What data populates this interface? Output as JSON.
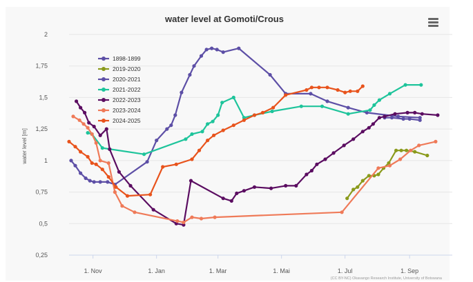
{
  "chart_data": {
    "type": "line",
    "title": "water level at Gomoti/Crous",
    "xlabel": "",
    "ylabel": "water level [m]",
    "ylim": [
      0.25,
      2.0
    ],
    "y_ticks": [
      "0,25",
      "0,5",
      "0,75",
      "1",
      "1,25",
      "1,5",
      "1,75",
      "2"
    ],
    "y_tick_values": [
      0.25,
      0.5,
      0.75,
      1.0,
      1.25,
      1.5,
      1.75,
      2.0
    ],
    "x_ticks": [
      "1. Nov",
      "1. Jan",
      "1. Mar",
      "1. Mai",
      "1. Jul",
      "1. Sep"
    ],
    "x_tick_days": [
      31,
      92,
      151,
      212,
      273,
      335
    ],
    "x_unit": "days after 1 Oct",
    "x_range": [
      8,
      376
    ],
    "grid": "horizontal",
    "legend_position": "top-left",
    "credit": "(CC BY-NC) Okavango Research Institute, University of Botswana",
    "series": [
      {
        "name": "1898-1899",
        "color": "#5d4fa6",
        "x": [
          10,
          14,
          19,
          24,
          28,
          32,
          38,
          45,
          52,
          83,
          92,
          102,
          106,
          110,
          116,
          124,
          128,
          135,
          140,
          145,
          150,
          156,
          171,
          201,
          216,
          240,
          256,
          276,
          294,
          324,
          345
        ],
        "y": [
          1.0,
          0.96,
          0.9,
          0.86,
          0.84,
          0.83,
          0.83,
          0.83,
          0.81,
          0.99,
          1.16,
          1.25,
          1.28,
          1.36,
          1.54,
          1.68,
          1.75,
          1.83,
          1.88,
          1.89,
          1.88,
          1.86,
          1.89,
          1.68,
          1.53,
          1.53,
          1.47,
          1.42,
          1.38,
          1.35,
          1.34
        ]
      },
      {
        "name": "2019-2020",
        "color": "#8a9a1b",
        "x": [
          275,
          281,
          285,
          290,
          296,
          301,
          305,
          310,
          315,
          322,
          327,
          332,
          340,
          352
        ],
        "y": [
          0.7,
          0.77,
          0.79,
          0.84,
          0.88,
          0.88,
          0.89,
          0.94,
          0.98,
          1.08,
          1.08,
          1.08,
          1.07,
          1.04
        ]
      },
      {
        "name": "2020-2021",
        "color": "#5d4fa6",
        "x": [
          311,
          318,
          329,
          335,
          345
        ],
        "y": [
          1.34,
          1.34,
          1.33,
          1.33,
          1.32
        ]
      },
      {
        "name": "2021-2022",
        "color": "#1ec49b",
        "x": [
          26,
          30,
          40,
          80,
          120,
          126,
          136,
          141,
          146,
          151,
          155,
          166,
          176,
          186,
          203,
          231,
          251,
          276,
          297,
          301,
          306,
          316,
          331,
          346
        ],
        "y": [
          1.22,
          1.21,
          1.1,
          1.05,
          1.17,
          1.21,
          1.23,
          1.29,
          1.31,
          1.36,
          1.46,
          1.5,
          1.34,
          1.36,
          1.39,
          1.43,
          1.43,
          1.37,
          1.4,
          1.44,
          1.48,
          1.53,
          1.6,
          1.6
        ]
      },
      {
        "name": "2022-2023",
        "color": "#5b0d61",
        "x": [
          15,
          19,
          23,
          27,
          32,
          38,
          44,
          47,
          56,
          67,
          89,
          111,
          118,
          125,
          156,
          164,
          169,
          176,
          186,
          202,
          216,
          226,
          236,
          241,
          246,
          254,
          262,
          272,
          281,
          290,
          296,
          300,
          306,
          311,
          321,
          333,
          340,
          347,
          362
        ],
        "y": [
          1.47,
          1.42,
          1.38,
          1.3,
          1.27,
          1.2,
          1.25,
          1.09,
          0.91,
          0.8,
          0.61,
          0.5,
          0.49,
          0.84,
          0.7,
          0.68,
          0.74,
          0.76,
          0.79,
          0.78,
          0.8,
          0.8,
          0.89,
          0.92,
          0.97,
          1.01,
          1.06,
          1.12,
          1.17,
          1.23,
          1.26,
          1.29,
          1.34,
          1.35,
          1.37,
          1.38,
          1.38,
          1.37,
          1.36
        ]
      },
      {
        "name": "2023-2024",
        "color": "#ef7a58",
        "x": [
          12,
          18,
          22,
          26,
          30,
          34,
          38,
          46,
          52,
          59,
          71,
          112,
          118,
          126,
          135,
          148,
          270,
          305,
          316,
          326,
          336,
          344,
          360
        ],
        "y": [
          1.35,
          1.32,
          1.29,
          1.26,
          1.21,
          1.14,
          1.0,
          0.98,
          0.75,
          0.64,
          0.59,
          0.52,
          0.51,
          0.55,
          0.54,
          0.55,
          0.59,
          0.94,
          0.96,
          1.01,
          1.08,
          1.12,
          1.15
        ]
      },
      {
        "name": "2024-2025",
        "color": "#e8531c",
        "x": [
          8,
          14,
          19,
          26,
          30,
          34,
          40,
          46,
          53,
          64,
          86,
          98,
          111,
          126,
          133,
          141,
          147,
          156,
          166,
          176,
          186,
          194,
          204,
          216,
          236,
          241,
          248,
          256,
          266,
          273,
          278,
          285,
          290
        ],
        "y": [
          1.15,
          1.11,
          1.07,
          1.03,
          0.98,
          0.97,
          0.93,
          0.87,
          0.79,
          0.72,
          0.73,
          0.95,
          0.97,
          1.01,
          1.08,
          1.16,
          1.2,
          1.24,
          1.28,
          1.32,
          1.36,
          1.38,
          1.42,
          1.52,
          1.56,
          1.58,
          1.58,
          1.58,
          1.56,
          1.54,
          1.55,
          1.55,
          1.59
        ]
      }
    ]
  }
}
